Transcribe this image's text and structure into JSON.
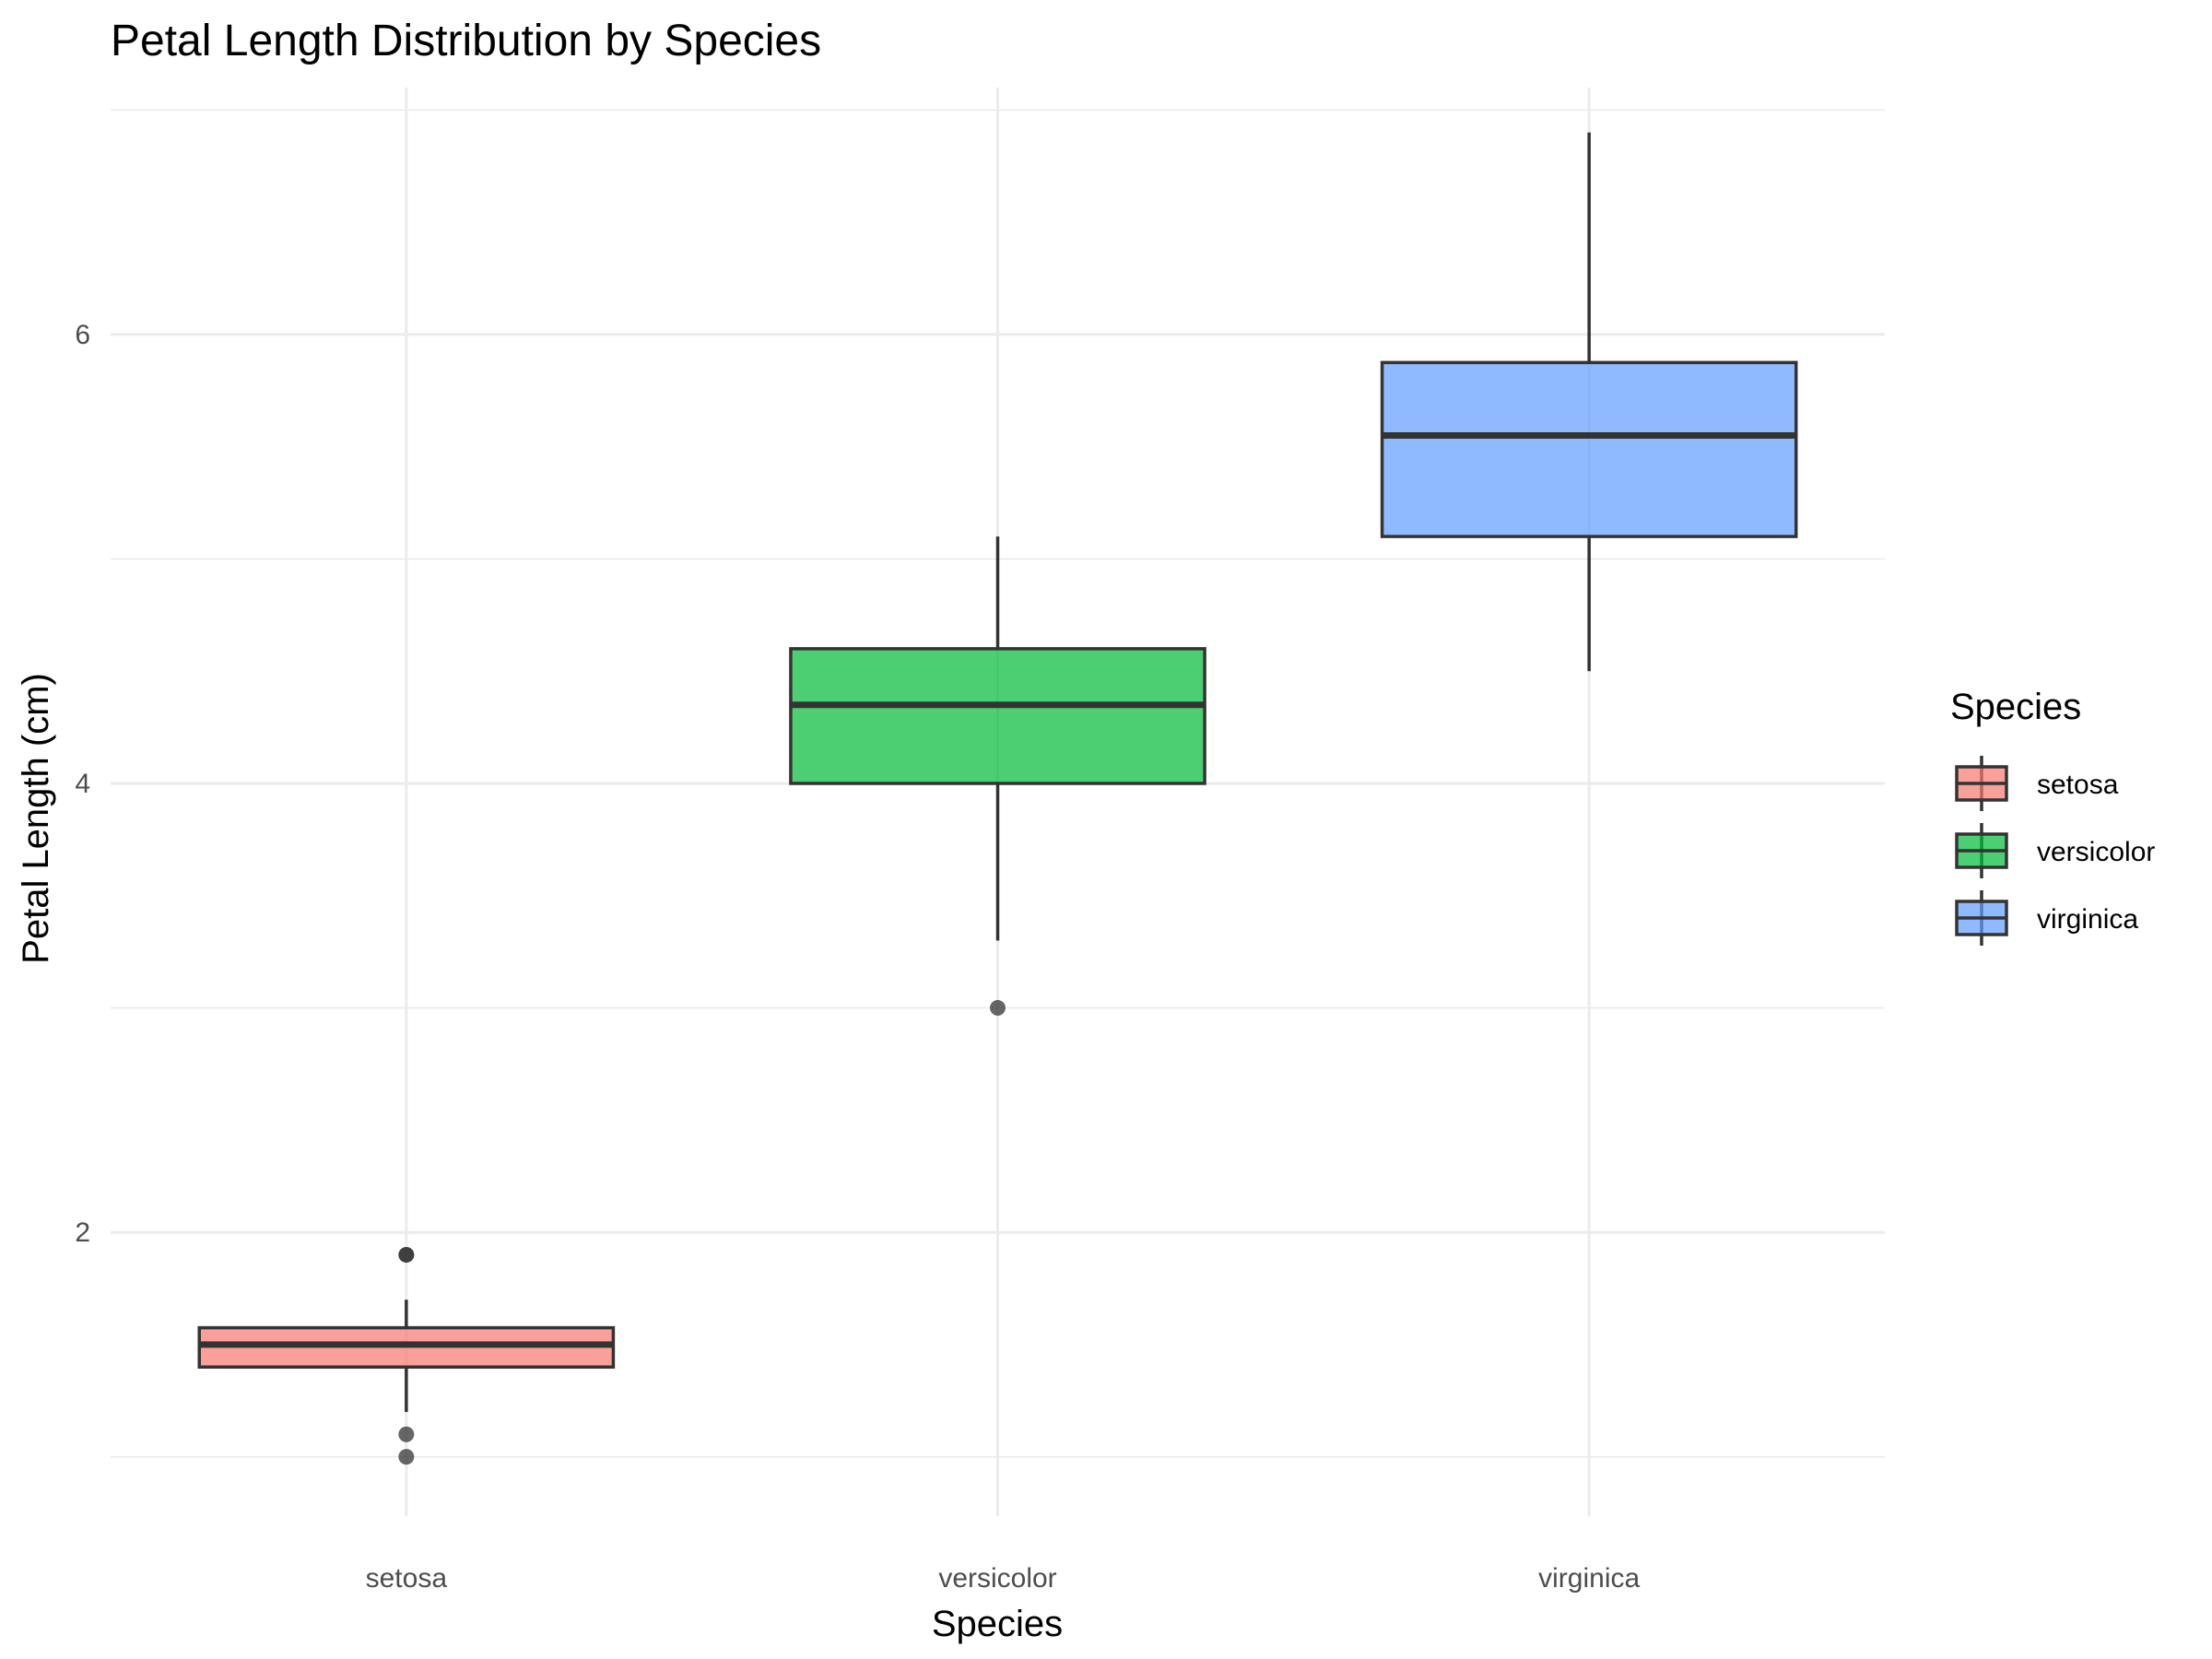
{
  "chart_data": {
    "type": "boxplot",
    "title": "Petal Length Distribution by Species",
    "xlabel": "Species",
    "ylabel": "Petal Length (cm)",
    "categories": [
      "setosa",
      "versicolor",
      "virginica"
    ],
    "ylim": [
      0.9,
      7.1
    ],
    "y_ticks": [
      2,
      4,
      6
    ],
    "grid": true,
    "legend": {
      "title": "Species",
      "position": "right",
      "entries": [
        "setosa",
        "versicolor",
        "virginica"
      ]
    },
    "series": [
      {
        "name": "setosa",
        "color": "#F8766D",
        "min": 1.2,
        "q1": 1.4,
        "median": 1.5,
        "q3": 1.575,
        "max": 1.7,
        "outliers": [
          1.0,
          1.1,
          1.9,
          1.9
        ]
      },
      {
        "name": "versicolor",
        "color": "#00BA38",
        "min": 3.3,
        "q1": 4.0,
        "median": 4.35,
        "q3": 4.6,
        "max": 5.1,
        "outliers": [
          3.0
        ]
      },
      {
        "name": "virginica",
        "color": "#619CFF",
        "min": 4.5,
        "q1": 5.1,
        "median": 5.55,
        "q3": 5.875,
        "max": 6.9,
        "outliers": []
      }
    ]
  }
}
